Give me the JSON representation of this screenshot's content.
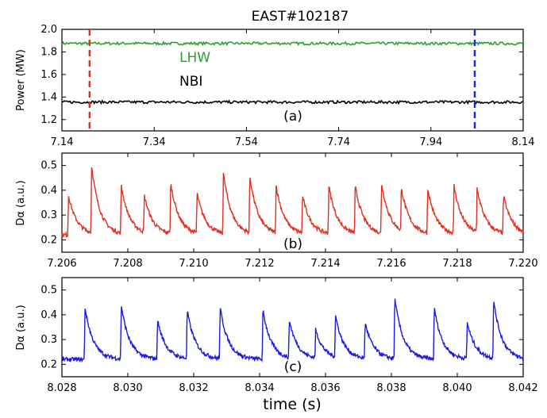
{
  "chart_data": [
    {
      "id": "a",
      "type": "line",
      "title": "EAST#102187",
      "panel_label": "(a)",
      "ylabel": "Power (MW)",
      "xlim": [
        7.14,
        8.14
      ],
      "ylim": [
        1.1,
        2.0
      ],
      "xticks": [
        "7.14",
        "7.34",
        "7.54",
        "7.74",
        "7.94",
        "8.14"
      ],
      "yticks": [
        "1.2",
        "1.4",
        "1.6",
        "1.8",
        "2.0"
      ],
      "xtick_values": [
        7.14,
        7.34,
        7.54,
        7.74,
        7.94,
        8.14
      ],
      "ytick_values": [
        1.2,
        1.4,
        1.6,
        1.8,
        2.0
      ],
      "series": [
        {
          "name": "LHW",
          "color": "#2ca02c",
          "base": 1.875,
          "noise": 0.012
        },
        {
          "name": "NBI",
          "color": "#000000",
          "base": 1.355,
          "noise": 0.012
        }
      ],
      "vlines": [
        {
          "x": 7.2,
          "color": "#e03020",
          "style": "dashed"
        },
        {
          "x": 8.035,
          "color": "#1a2ee0",
          "style": "dashed"
        }
      ]
    },
    {
      "id": "b",
      "type": "line",
      "panel_label": "(b)",
      "ylabel": "Dα (a.u.)",
      "xlim": [
        7.206,
        7.22
      ],
      "ylim": [
        0.15,
        0.55
      ],
      "xticks": [
        "7.206",
        "7.208",
        "7.210",
        "7.212",
        "7.214",
        "7.216",
        "7.218",
        "7.220"
      ],
      "yticks": [
        "0.2",
        "0.3",
        "0.4",
        "0.5"
      ],
      "xtick_values": [
        7.206,
        7.208,
        7.21,
        7.212,
        7.214,
        7.216,
        7.218,
        7.22
      ],
      "ytick_values": [
        0.2,
        0.3,
        0.4,
        0.5
      ],
      "color": "#e03020",
      "baseline": 0.22,
      "spikes": [
        {
          "x": 7.2062,
          "peak": 0.38
        },
        {
          "x": 7.2069,
          "peak": 0.5
        },
        {
          "x": 7.2078,
          "peak": 0.42
        },
        {
          "x": 7.2085,
          "peak": 0.38
        },
        {
          "x": 7.2093,
          "peak": 0.43
        },
        {
          "x": 7.2101,
          "peak": 0.39
        },
        {
          "x": 7.2109,
          "peak": 0.47
        },
        {
          "x": 7.2117,
          "peak": 0.46
        },
        {
          "x": 7.2125,
          "peak": 0.42
        },
        {
          "x": 7.2133,
          "peak": 0.38
        },
        {
          "x": 7.2141,
          "peak": 0.42
        },
        {
          "x": 7.2149,
          "peak": 0.42
        },
        {
          "x": 7.2157,
          "peak": 0.43
        },
        {
          "x": 7.2163,
          "peak": 0.41
        },
        {
          "x": 7.2171,
          "peak": 0.41
        },
        {
          "x": 7.2179,
          "peak": 0.42
        },
        {
          "x": 7.2186,
          "peak": 0.41
        },
        {
          "x": 7.2194,
          "peak": 0.38
        }
      ]
    },
    {
      "id": "c",
      "type": "line",
      "panel_label": "(c)",
      "ylabel": "Dα (a.u.)",
      "xlabel": "time (s)",
      "xlim": [
        8.028,
        8.042
      ],
      "ylim": [
        0.15,
        0.55
      ],
      "xticks": [
        "8.028",
        "8.030",
        "8.032",
        "8.034",
        "8.036",
        "8.038",
        "8.040",
        "8.042"
      ],
      "yticks": [
        "0.2",
        "0.3",
        "0.4",
        "0.5"
      ],
      "xtick_values": [
        8.028,
        8.03,
        8.032,
        8.034,
        8.036,
        8.038,
        8.04,
        8.042
      ],
      "ytick_values": [
        0.2,
        0.3,
        0.4,
        0.5
      ],
      "color": "#1a1ae0",
      "baseline": 0.22,
      "spikes": [
        {
          "x": 8.0287,
          "peak": 0.43
        },
        {
          "x": 8.0298,
          "peak": 0.44
        },
        {
          "x": 8.0309,
          "peak": 0.38
        },
        {
          "x": 8.0318,
          "peak": 0.42
        },
        {
          "x": 8.0328,
          "peak": 0.43
        },
        {
          "x": 8.0341,
          "peak": 0.42
        },
        {
          "x": 8.0349,
          "peak": 0.38
        },
        {
          "x": 8.0357,
          "peak": 0.34
        },
        {
          "x": 8.0363,
          "peak": 0.4
        },
        {
          "x": 8.0372,
          "peak": 0.37
        },
        {
          "x": 8.0381,
          "peak": 0.47
        },
        {
          "x": 8.0393,
          "peak": 0.43
        },
        {
          "x": 8.0403,
          "peak": 0.37
        },
        {
          "x": 8.0411,
          "peak": 0.46
        }
      ]
    }
  ]
}
